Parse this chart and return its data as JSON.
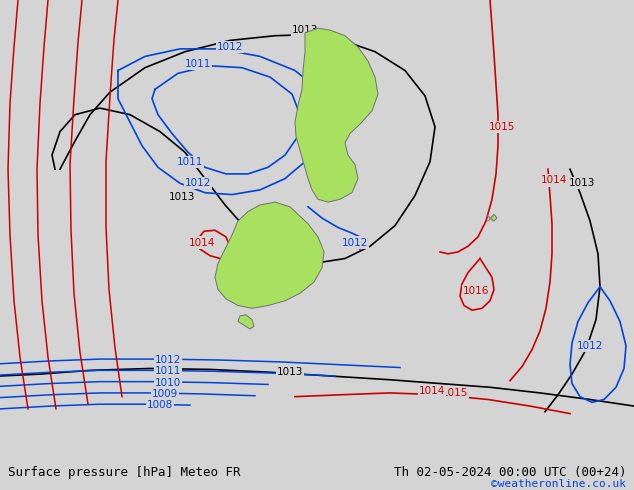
{
  "title_left": "Surface pressure [hPa] Meteo FR",
  "title_right": "Th 02-05-2024 00:00 UTC (00+24)",
  "copyright": "©weatheronline.co.uk",
  "background_color": "#d4d4d4",
  "land_color": "#a8e060",
  "land_edge_color": "#707070",
  "isobar_black_color": "#000000",
  "isobar_blue_color": "#0044dd",
  "isobar_red_color": "#cc0000",
  "label_fontsize": 7.5,
  "title_fontsize": 9,
  "copyright_fontsize": 8,
  "copyright_color": "#0044dd"
}
